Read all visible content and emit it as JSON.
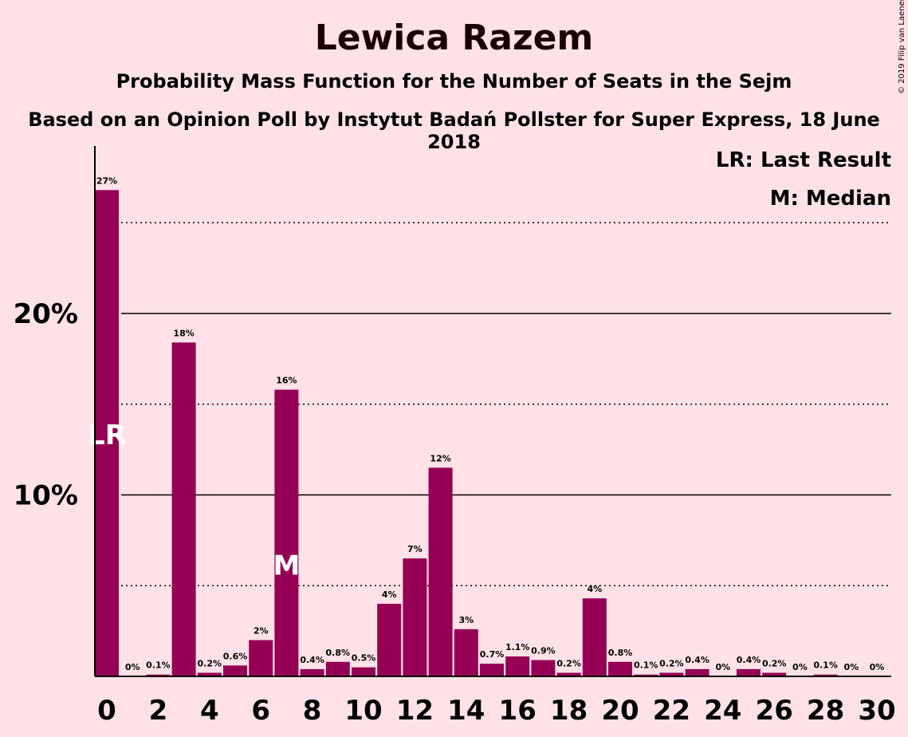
{
  "title": "Lewica Razem",
  "subtitle": "Probability Mass Function for the Number of Seats in the Sejm",
  "subtitle2": "Based on an Opinion Poll by Instytut Badań Pollster for Super Express, 18 June 2018",
  "copyright": "© 2019 Filip van Laenen",
  "colors": {
    "background": "#FFE2E7",
    "bar": "#950054"
  },
  "chart_data": {
    "type": "bar",
    "x": [
      0,
      1,
      2,
      3,
      4,
      5,
      6,
      7,
      8,
      9,
      10,
      11,
      12,
      13,
      14,
      15,
      16,
      17,
      18,
      19,
      20,
      21,
      22,
      23,
      24,
      25,
      26,
      27,
      28,
      29,
      30
    ],
    "values": [
      26.8,
      0.0,
      0.1,
      18.4,
      0.2,
      0.6,
      2.0,
      15.8,
      0.4,
      0.8,
      0.5,
      4.0,
      6.5,
      11.5,
      2.6,
      0.7,
      1.1,
      0.9,
      0.2,
      4.3,
      0.8,
      0.1,
      0.2,
      0.4,
      0.0,
      0.4,
      0.2,
      0.0,
      0.1,
      0.0,
      0.0
    ],
    "labels": [
      "27%",
      "0%",
      "0.1%",
      "18%",
      "0.2%",
      "0.6%",
      "2%",
      "16%",
      "0.4%",
      "0.8%",
      "0.5%",
      "4%",
      "7%",
      "12%",
      "3%",
      "0.7%",
      "1.1%",
      "0.9%",
      "0.2%",
      "4%",
      "0.8%",
      "0.1%",
      "0.2%",
      "0.4%",
      "0%",
      "0.4%",
      "0.2%",
      "0%",
      "0.1%",
      "0%",
      "0%"
    ],
    "x_ticks": [
      "0",
      "2",
      "4",
      "6",
      "8",
      "10",
      "12",
      "14",
      "16",
      "18",
      "20",
      "22",
      "24",
      "26",
      "28",
      "30"
    ],
    "y_ticks": [
      {
        "value": 10,
        "label": "10%"
      },
      {
        "value": 20,
        "label": "20%"
      }
    ],
    "minor_gridlines": [
      5,
      15,
      25
    ],
    "ylim": [
      0,
      29
    ],
    "markers": [
      {
        "x": 0,
        "label": "LR"
      },
      {
        "x": 7,
        "label": "M"
      }
    ],
    "legend": [
      "LR: Last Result",
      "M: Median"
    ],
    "legend_position": "top-right"
  }
}
